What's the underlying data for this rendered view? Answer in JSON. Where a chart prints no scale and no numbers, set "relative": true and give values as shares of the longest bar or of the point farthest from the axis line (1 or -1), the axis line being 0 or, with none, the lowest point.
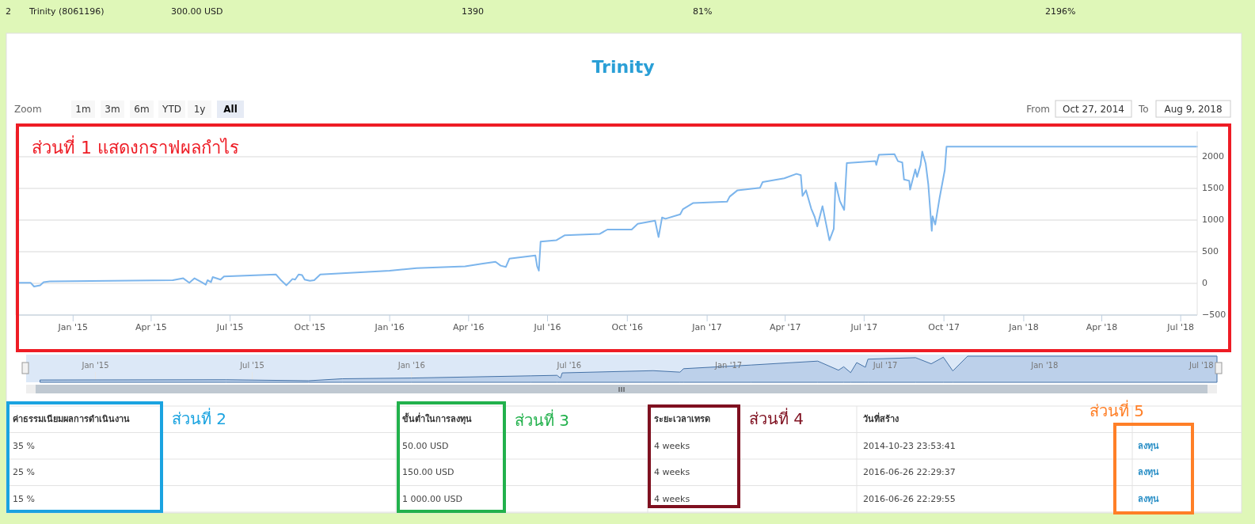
{
  "chart_data": [
    {
      "type": "line",
      "title": "Trinity",
      "color": "#7cb5ec",
      "grid": "y",
      "annotations": [
        "ส่วนที่ 1 แสดงกราฟผลกำไร",
        "Zoom",
        "1m",
        "3m",
        "6m",
        "YTD",
        "1y",
        "All",
        "From",
        "Oct 27, 2014",
        "To",
        "Aug 9, 2018"
      ],
      "xlim": [
        "2014-10-27",
        "2018-07-20"
      ],
      "xticks": [
        {
          "value": "2015-01-01",
          "label": "Jan '15"
        },
        {
          "value": "2015-04-01",
          "label": "Apr '15"
        },
        {
          "value": "2015-07-01",
          "label": "Jul '15"
        },
        {
          "value": "2015-10-01",
          "label": "Oct '15"
        },
        {
          "value": "2016-01-01",
          "label": "Jan '16"
        },
        {
          "value": "2016-04-01",
          "label": "Apr '16"
        },
        {
          "value": "2016-07-01",
          "label": "Jul '16"
        },
        {
          "value": "2016-10-01",
          "label": "Oct '16"
        },
        {
          "value": "2017-01-01",
          "label": "Jan '17"
        },
        {
          "value": "2017-04-01",
          "label": "Apr '17"
        },
        {
          "value": "2017-07-01",
          "label": "Jul '17"
        },
        {
          "value": "2017-10-01",
          "label": "Oct '17"
        },
        {
          "value": "2018-01-01",
          "label": "Jan '18"
        },
        {
          "value": "2018-04-01",
          "label": "Apr '18"
        },
        {
          "value": "2018-07-01",
          "label": "Jul '18"
        }
      ],
      "ylim": [
        -500,
        2400
      ],
      "yticks": [
        -500,
        0,
        500,
        1000,
        1500,
        2000
      ],
      "x": [
        "2014-10-29",
        "2014-11-13",
        "2014-11-17",
        "2014-11-24",
        "2014-11-28",
        "2014-12-05",
        "2015-04-26",
        "2015-05-08",
        "2015-05-15",
        "2015-05-21",
        "2015-05-29",
        "2015-06-03",
        "2015-06-05",
        "2015-06-09",
        "2015-06-11",
        "2015-06-20",
        "2015-06-24",
        "2015-08-23",
        "2015-08-28",
        "2015-09-04",
        "2015-09-11",
        "2015-09-14",
        "2015-09-18",
        "2015-09-22",
        "2015-09-25",
        "2015-10-01",
        "2015-10-06",
        "2015-10-13",
        "2016-01-01",
        "2016-02-01",
        "2016-03-28",
        "2016-04-16",
        "2016-05-02",
        "2016-05-08",
        "2016-05-14",
        "2016-05-18",
        "2016-06-17",
        "2016-06-19",
        "2016-06-21",
        "2016-06-23",
        "2016-07-11",
        "2016-07-21",
        "2016-08-30",
        "2016-09-08",
        "2016-10-06",
        "2016-10-13",
        "2016-11-02",
        "2016-11-06",
        "2016-11-10",
        "2016-11-14",
        "2016-12-01",
        "2016-12-04",
        "2016-12-16",
        "2017-01-24",
        "2017-01-27",
        "2017-02-05",
        "2017-03-03",
        "2017-03-06",
        "2017-03-31",
        "2017-04-14",
        "2017-04-19",
        "2017-04-21",
        "2017-04-25",
        "2017-05-01",
        "2017-05-05",
        "2017-05-08",
        "2017-05-14",
        "2017-05-22",
        "2017-05-27",
        "2017-05-29",
        "2017-06-03",
        "2017-06-08",
        "2017-06-11",
        "2017-07-14",
        "2017-07-15",
        "2017-07-18",
        "2017-08-05",
        "2017-08-09",
        "2017-08-14",
        "2017-08-16",
        "2017-08-22",
        "2017-08-23",
        "2017-08-29",
        "2017-08-31",
        "2017-09-04",
        "2017-09-06",
        "2017-09-10",
        "2017-09-13",
        "2017-09-17",
        "2017-09-18",
        "2017-09-21",
        "2017-09-26",
        "2017-10-02",
        "2017-10-04",
        "2018-07-20"
      ],
      "values": [
        10,
        10,
        -50,
        -30,
        20,
        30,
        50,
        80,
        10,
        80,
        20,
        -20,
        50,
        20,
        100,
        60,
        110,
        140,
        60,
        -30,
        70,
        60,
        140,
        130,
        60,
        40,
        50,
        140,
        200,
        240,
        270,
        310,
        340,
        280,
        260,
        390,
        440,
        270,
        200,
        660,
        680,
        760,
        780,
        850,
        850,
        940,
        990,
        730,
        1040,
        1020,
        1090,
        1170,
        1270,
        1290,
        1370,
        1470,
        1510,
        1600,
        1660,
        1730,
        1710,
        1380,
        1470,
        1180,
        1050,
        900,
        1220,
        680,
        860,
        1590,
        1300,
        1160,
        1900,
        1930,
        1870,
        2030,
        2040,
        1930,
        1910,
        1640,
        1620,
        1480,
        1800,
        1680,
        1870,
        2080,
        1890,
        1560,
        830,
        1060,
        930,
        1350,
        1790,
        2160,
        2160
      ]
    },
    {
      "type": "area",
      "relative": true,
      "color": "#4572a7",
      "tick_labels": "x",
      "grid": "x",
      "xlim": [
        "2014-10-13",
        "2018-07-19"
      ],
      "xticks": [
        {
          "value": "2015-01-01",
          "label": "Jan '15"
        },
        {
          "value": "2015-07-01",
          "label": "Jul '15"
        },
        {
          "value": "2016-01-01",
          "label": "Jan '16"
        },
        {
          "value": "2016-07-01",
          "label": "Jul '16"
        },
        {
          "value": "2017-01-01",
          "label": "Jan '17"
        },
        {
          "value": "2017-07-01",
          "label": "Jul '17"
        },
        {
          "value": "2018-01-01",
          "label": "Jan '18"
        },
        {
          "value": "2018-07-01",
          "label": "Jul '18"
        }
      ],
      "x": [
        "2014-10-29",
        "2015-06-01",
        "2015-09-04",
        "2015-10-13",
        "2016-01-01",
        "2016-05-18",
        "2016-06-17",
        "2016-06-21",
        "2016-06-23",
        "2016-10-06",
        "2016-11-06",
        "2016-11-10",
        "2017-01-27",
        "2017-04-14",
        "2017-05-08",
        "2017-05-14",
        "2017-05-22",
        "2017-05-29",
        "2017-06-08",
        "2017-06-11",
        "2017-08-05",
        "2017-08-23",
        "2017-09-06",
        "2017-09-17",
        "2017-10-04",
        "2018-07-19"
      ],
      "values": [
        0.03,
        0.04,
        0,
        0.08,
        0.11,
        0.2,
        0.22,
        0.11,
        0.32,
        0.41,
        0.35,
        0.49,
        0.64,
        0.8,
        0.43,
        0.57,
        0.33,
        0.74,
        0.55,
        0.88,
        0.94,
        0.69,
        0.96,
        0.4,
        1,
        1
      ]
    },
    {
      "type": "other",
      "annotations": [
        "2",
        "Trinity (8061196)",
        "300.00 USD",
        "1390",
        "81%",
        "2196%"
      ]
    },
    {
      "type": "other",
      "categories": [
        "ค่าธรรมเนียมผลการดำเนินงาน",
        "ขั้นต่ำในการลงทุน",
        "ระยะเวลาเทรด",
        "วันที่สร้าง",
        null
      ],
      "annotations": [
        "35 %",
        "50.00 USD",
        "4 weeks",
        "2014-10-23 23:53:41",
        "ลงทุน",
        "25 %",
        "150.00 USD",
        "4 weeks",
        "2016-06-26 22:29:37",
        "ลงทุน",
        "15 %",
        "1 000.00 USD",
        "4 weeks",
        "2016-06-26 22:29:55",
        "ลงทุน"
      ]
    },
    {
      "type": "other",
      "annotations": [
        "ส่วนที่ 2",
        "ส่วนที่ 3",
        "ส่วนที่ 4",
        "ส่วนที่ 5"
      ]
    }
  ]
}
